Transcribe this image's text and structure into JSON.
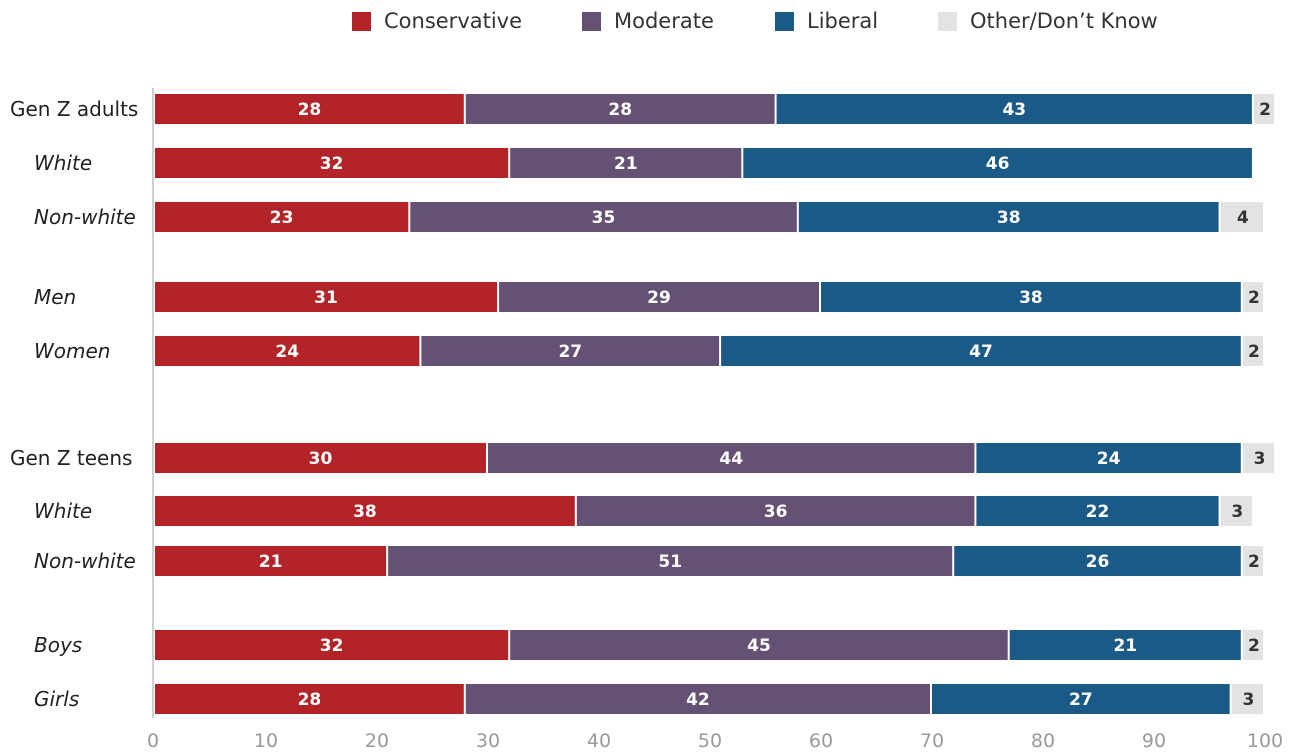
{
  "chart_data": {
    "type": "bar",
    "orientation": "horizontal",
    "stacked": true,
    "title": "",
    "xlabel": "",
    "ylabel": "",
    "xlim": [
      0,
      100
    ],
    "xticks": [
      "0",
      "10",
      "20",
      "30",
      "40",
      "50",
      "60",
      "70",
      "80",
      "90",
      "100"
    ],
    "grid": false,
    "legend_position": "top",
    "categories": [
      {
        "label": "Gen Z adults",
        "italic": false
      },
      {
        "label": "White",
        "italic": true
      },
      {
        "label": "Non-white",
        "italic": true
      },
      {
        "label": "Men",
        "italic": true
      },
      {
        "label": "Women",
        "italic": true
      },
      {
        "label": "Gen Z teens",
        "italic": false
      },
      {
        "label": "White",
        "italic": true
      },
      {
        "label": "Non-white",
        "italic": true
      },
      {
        "label": "Boys",
        "italic": true
      },
      {
        "label": "Girls",
        "italic": true
      }
    ],
    "series": [
      {
        "name": "Conservative",
        "color": "#b22428",
        "values": [
          28,
          32,
          23,
          31,
          24,
          30,
          38,
          21,
          32,
          28
        ],
        "labels": [
          "28",
          "32",
          "23",
          "31",
          "24",
          "30",
          "38",
          "21",
          "32",
          "28"
        ]
      },
      {
        "name": "Moderate",
        "color": "#655173",
        "values": [
          28,
          21,
          35,
          29,
          27,
          44,
          36,
          51,
          45,
          42
        ],
        "labels": [
          "28",
          "21",
          "35",
          "29",
          "27",
          "44",
          "36",
          "51",
          "45",
          "42"
        ]
      },
      {
        "name": "Liberal",
        "color": "#1b5a86",
        "values": [
          43,
          46,
          38,
          38,
          47,
          24,
          22,
          26,
          21,
          27
        ],
        "labels": [
          "43",
          "46",
          "38",
          "38",
          "47",
          "24",
          "22",
          "26",
          "21",
          "27"
        ]
      },
      {
        "name": "Other/Don’t Know",
        "color": "#e3e3e3",
        "values": [
          2,
          0,
          4,
          2,
          2,
          3,
          3,
          2,
          2,
          3
        ],
        "labels": [
          "2",
          "",
          "4",
          "2",
          "2",
          "3",
          "3",
          "2",
          "2",
          "3"
        ]
      }
    ]
  }
}
